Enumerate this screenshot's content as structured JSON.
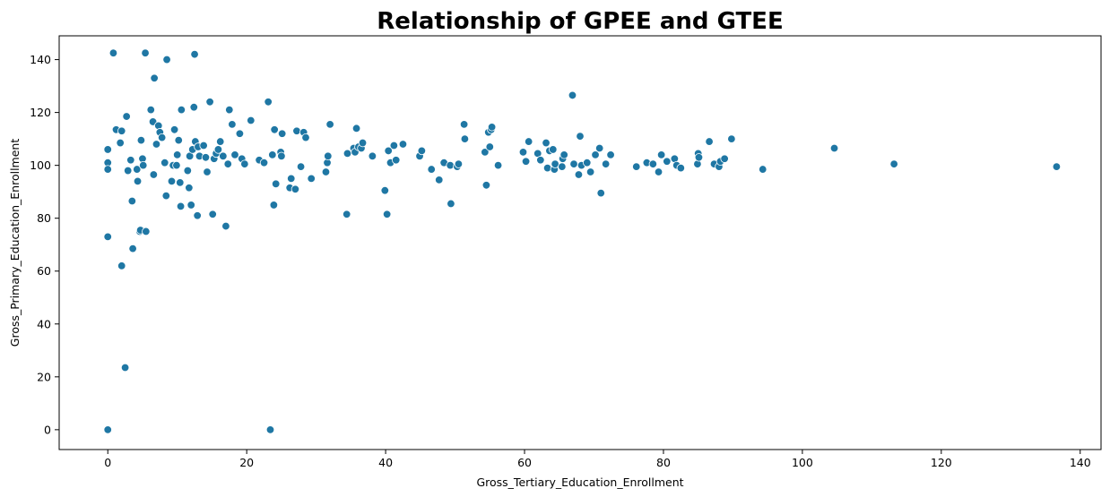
{
  "chart_data": {
    "type": "scatter",
    "title": "Relationship of GPEE and GTEE",
    "xlabel": "Gross_Tertiary_Education_Enrollment",
    "ylabel": "Gross_Primary_Education_Enrollment",
    "xlim": [
      -7,
      143
    ],
    "ylim": [
      -7.5,
      149
    ],
    "xticks": [
      0,
      20,
      40,
      60,
      80,
      100,
      120,
      140
    ],
    "yticks": [
      0,
      20,
      40,
      60,
      80,
      100,
      120,
      140
    ],
    "grid": false,
    "marker_color": "#1f77a4",
    "points": [
      [
        0,
        106
      ],
      [
        0,
        101
      ],
      [
        0,
        98.5
      ],
      [
        0,
        73
      ],
      [
        0,
        0
      ],
      [
        0.8,
        142.5
      ],
      [
        1.2,
        113.5
      ],
      [
        1.8,
        108.5
      ],
      [
        2,
        113
      ],
      [
        2,
        62
      ],
      [
        2.5,
        23.5
      ],
      [
        2.7,
        118.5
      ],
      [
        2.9,
        98
      ],
      [
        3.3,
        102
      ],
      [
        3.5,
        86.5
      ],
      [
        3.6,
        68.5
      ],
      [
        4.2,
        98.5
      ],
      [
        4.3,
        94
      ],
      [
        4.6,
        75
      ],
      [
        4.7,
        75.5
      ],
      [
        4.8,
        109.5
      ],
      [
        5,
        102.5
      ],
      [
        5.1,
        100
      ],
      [
        5.5,
        75
      ],
      [
        5.4,
        142.5
      ],
      [
        6.2,
        121
      ],
      [
        6.5,
        116.5
      ],
      [
        6.6,
        96.5
      ],
      [
        6.7,
        133
      ],
      [
        7,
        108
      ],
      [
        7.3,
        115
      ],
      [
        7.5,
        112.5
      ],
      [
        7.8,
        110.5
      ],
      [
        8.2,
        101
      ],
      [
        8.4,
        88.5
      ],
      [
        8.5,
        140
      ],
      [
        9.2,
        94
      ],
      [
        9.4,
        100
      ],
      [
        9.6,
        113.5
      ],
      [
        9.9,
        100
      ],
      [
        10,
        104
      ],
      [
        10.2,
        109.5
      ],
      [
        10.4,
        93.5
      ],
      [
        10.5,
        84.5
      ],
      [
        10.6,
        121
      ],
      [
        11.5,
        98
      ],
      [
        11.7,
        91.5
      ],
      [
        11.8,
        103.5
      ],
      [
        12,
        85
      ],
      [
        12.2,
        106
      ],
      [
        12.4,
        122
      ],
      [
        12.5,
        142
      ],
      [
        12.6,
        109
      ],
      [
        12.9,
        81
      ],
      [
        13,
        107
      ],
      [
        13.2,
        103.5
      ],
      [
        13.8,
        107.5
      ],
      [
        14.1,
        103
      ],
      [
        14.3,
        97.5
      ],
      [
        14.7,
        124
      ],
      [
        15.1,
        81.5
      ],
      [
        15.3,
        102.5
      ],
      [
        15.6,
        104.5
      ],
      [
        15.9,
        106
      ],
      [
        16.2,
        109
      ],
      [
        16.6,
        103.5
      ],
      [
        17,
        77
      ],
      [
        17.3,
        100.5
      ],
      [
        17.5,
        121
      ],
      [
        17.9,
        115.5
      ],
      [
        18.3,
        104
      ],
      [
        19,
        112
      ],
      [
        19.3,
        102.5
      ],
      [
        19.7,
        100.5
      ],
      [
        20.6,
        117
      ],
      [
        21.8,
        102
      ],
      [
        22.5,
        101
      ],
      [
        23.1,
        124
      ],
      [
        23.4,
        0
      ],
      [
        23.7,
        104
      ],
      [
        23.9,
        85
      ],
      [
        24,
        113.5
      ],
      [
        24.2,
        93
      ],
      [
        24.9,
        105
      ],
      [
        25,
        103.5
      ],
      [
        25.1,
        112
      ],
      [
        26.2,
        91.5
      ],
      [
        26.4,
        95
      ],
      [
        27,
        91
      ],
      [
        27.2,
        113
      ],
      [
        27.8,
        99.5
      ],
      [
        28.2,
        112.5
      ],
      [
        28.5,
        110.5
      ],
      [
        29.3,
        95
      ],
      [
        31.4,
        97.5
      ],
      [
        31.6,
        101
      ],
      [
        31.7,
        103.5
      ],
      [
        32,
        115.5
      ],
      [
        34.4,
        81.5
      ],
      [
        34.5,
        104.5
      ],
      [
        35.4,
        106.5
      ],
      [
        35.6,
        105
      ],
      [
        35.8,
        114
      ],
      [
        36.1,
        107
      ],
      [
        36.5,
        106.5
      ],
      [
        36.7,
        108.5
      ],
      [
        38.1,
        103.5
      ],
      [
        39.9,
        90.5
      ],
      [
        40.2,
        81.5
      ],
      [
        40.4,
        105.5
      ],
      [
        40.7,
        101
      ],
      [
        41.2,
        107.5
      ],
      [
        41.5,
        102
      ],
      [
        42.5,
        108
      ],
      [
        44.9,
        103.5
      ],
      [
        45.2,
        105.5
      ],
      [
        46.6,
        98.5
      ],
      [
        47.7,
        94.5
      ],
      [
        48.4,
        101
      ],
      [
        49.3,
        100
      ],
      [
        49.4,
        85.5
      ],
      [
        50.3,
        99.5
      ],
      [
        50.5,
        100.5
      ],
      [
        51.3,
        115.5
      ],
      [
        51.4,
        110
      ],
      [
        54.3,
        105
      ],
      [
        54.5,
        92.5
      ],
      [
        54.8,
        112.5
      ],
      [
        55,
        107
      ],
      [
        55.2,
        113.5
      ],
      [
        55.3,
        114.5
      ],
      [
        56.2,
        100
      ],
      [
        59.8,
        105
      ],
      [
        60.2,
        101.5
      ],
      [
        60.6,
        109
      ],
      [
        61.9,
        104.5
      ],
      [
        62.3,
        102
      ],
      [
        63.1,
        108.5
      ],
      [
        63.3,
        99
      ],
      [
        63.6,
        105.5
      ],
      [
        64.1,
        106
      ],
      [
        64.3,
        98.5
      ],
      [
        64.4,
        100.5
      ],
      [
        65.4,
        99.5
      ],
      [
        65.5,
        102.5
      ],
      [
        65.7,
        104
      ],
      [
        66.9,
        126.5
      ],
      [
        67.1,
        100.5
      ],
      [
        67.8,
        96.5
      ],
      [
        68,
        111
      ],
      [
        68.2,
        100
      ],
      [
        69,
        101
      ],
      [
        69.5,
        97.5
      ],
      [
        70.2,
        104
      ],
      [
        70.8,
        106.5
      ],
      [
        71,
        89.5
      ],
      [
        71.7,
        100.5
      ],
      [
        72.4,
        104
      ],
      [
        76.1,
        99.5
      ],
      [
        77.6,
        101
      ],
      [
        78.5,
        100.5
      ],
      [
        79.3,
        97.5
      ],
      [
        79.7,
        104
      ],
      [
        80.5,
        101.5
      ],
      [
        81.6,
        102.5
      ],
      [
        81.9,
        100
      ],
      [
        82.5,
        99
      ],
      [
        84.9,
        100.5
      ],
      [
        85,
        104.5
      ],
      [
        85.1,
        103
      ],
      [
        86.6,
        109
      ],
      [
        87.3,
        100.5
      ],
      [
        88,
        99.5
      ],
      [
        88.2,
        101.5
      ],
      [
        88.8,
        102.5
      ],
      [
        89.8,
        110
      ],
      [
        94.3,
        98.5
      ],
      [
        104.6,
        106.5
      ],
      [
        113.2,
        100.5
      ],
      [
        136.6,
        99.5
      ]
    ]
  }
}
